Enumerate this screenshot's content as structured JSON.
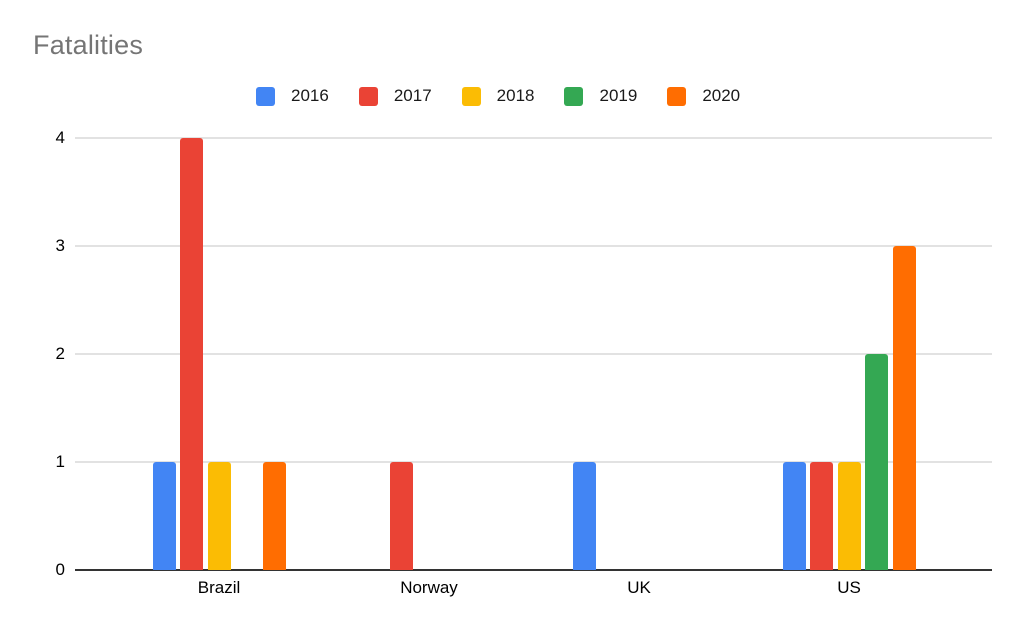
{
  "chart_data": {
    "type": "bar",
    "title": "Fatalities",
    "title_color": "#757575",
    "categories": [
      "Brazil",
      "Norway",
      "UK",
      "US"
    ],
    "series": [
      {
        "name": "2016",
        "color": "#4285F4",
        "values": [
          1,
          0,
          1,
          1
        ]
      },
      {
        "name": "2017",
        "color": "#EA4335",
        "values": [
          4,
          1,
          0,
          1
        ]
      },
      {
        "name": "2018",
        "color": "#FBBC04",
        "values": [
          1,
          0,
          0,
          1
        ]
      },
      {
        "name": "2019",
        "color": "#34A853",
        "values": [
          0,
          0,
          0,
          2
        ]
      },
      {
        "name": "2020",
        "color": "#FF6D01",
        "values": [
          1,
          0,
          0,
          3
        ]
      }
    ],
    "yticks": [
      "0",
      "1",
      "2",
      "3",
      "4"
    ],
    "ylim": [
      0,
      4
    ],
    "grid": true,
    "legend_position": "top",
    "axis_color": "#333333",
    "gridline_color": "#e2e2e2",
    "label_color": "#000000"
  }
}
